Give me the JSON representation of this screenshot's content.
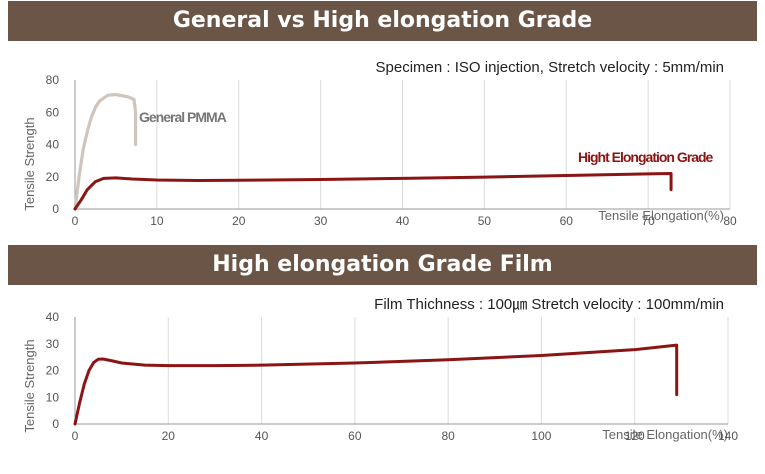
{
  "banner1": {
    "title": "General vs High elongation Grade"
  },
  "banner2": {
    "title": "High elongation Grade Film"
  },
  "colors": {
    "banner": "#6b5547",
    "general": "#cfc5bc",
    "high": "#8b1414",
    "grid": "#dcdcdc"
  },
  "chart_data": [
    {
      "type": "line",
      "annotation": "Specimen : ISO injection,  Stretch velocity : 5mm/min",
      "xlabel": "Tensile Elongation(%)",
      "ylabel": "Tensile Strength",
      "xlim": [
        0,
        80
      ],
      "ylim": [
        0,
        80
      ],
      "xticks": [
        0,
        10,
        20,
        30,
        40,
        50,
        60,
        70,
        80
      ],
      "yticks": [
        0,
        20,
        40,
        60,
        80
      ],
      "grid": "vertical",
      "series": [
        {
          "name": "General PMMA",
          "color": "#cfc5bc",
          "x": [
            0,
            0.5,
            1,
            1.5,
            2,
            2.5,
            3,
            4,
            5,
            6,
            6.5,
            7.2,
            7.4,
            7.4
          ],
          "y": [
            0,
            20,
            37,
            48,
            57,
            63,
            67,
            70.5,
            71,
            70,
            69.5,
            68,
            60,
            40
          ]
        },
        {
          "name": "Hight Elongation Grade",
          "color": "#8b1414",
          "x": [
            0,
            0.8,
            1.5,
            2.5,
            3.5,
            5,
            7,
            10,
            15,
            20,
            30,
            40,
            50,
            60,
            70,
            72.8,
            72.8
          ],
          "y": [
            0,
            6,
            12,
            17,
            19,
            19.3,
            18.6,
            18,
            17.7,
            17.8,
            18.3,
            19,
            19.8,
            20.8,
            21.8,
            22,
            12
          ]
        }
      ]
    },
    {
      "type": "line",
      "annotation": "Film Thichness : 100㎛    Stretch velocity : 100mm/min",
      "xlabel": "Tensile Elongation(%)",
      "ylabel": "Tensile Strength",
      "xlim": [
        0,
        140
      ],
      "ylim": [
        0,
        40
      ],
      "xticks": [
        0,
        20,
        40,
        60,
        80,
        100,
        120,
        140
      ],
      "yticks": [
        0,
        10,
        20,
        30,
        40
      ],
      "grid": "vertical",
      "series": [
        {
          "color": "#8b1414",
          "x": [
            0,
            1,
            2,
            3,
            4,
            5,
            6,
            8,
            10,
            15,
            20,
            30,
            40,
            60,
            80,
            100,
            120,
            129,
            129
          ],
          "y": [
            0,
            8,
            15,
            20,
            23,
            24.2,
            24.3,
            23.6,
            22.8,
            22,
            21.8,
            21.8,
            22,
            22.8,
            24,
            25.6,
            27.8,
            29.5,
            11
          ]
        }
      ]
    }
  ]
}
